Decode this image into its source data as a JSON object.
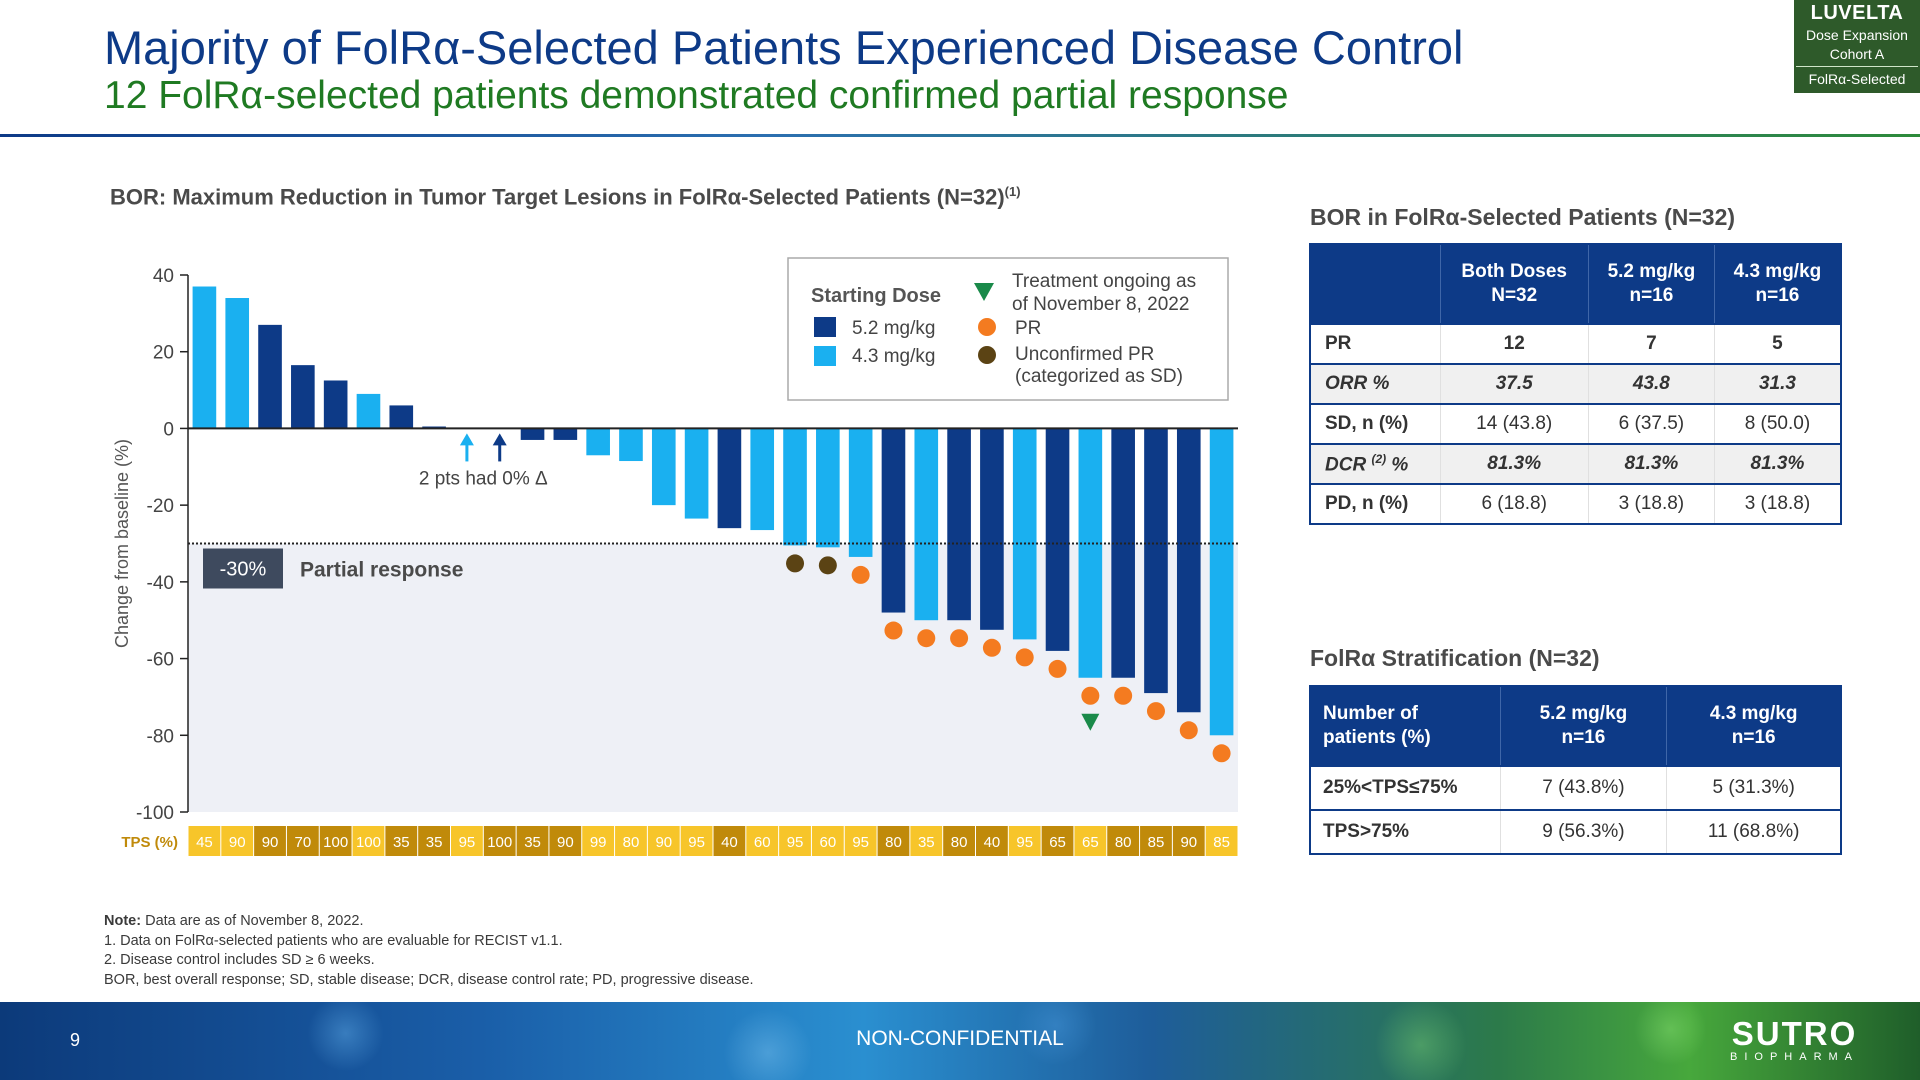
{
  "header": {
    "title": "Majority of FolRα-Selected Patients Experienced Disease Control",
    "subtitle": "12 FolRα-selected patients demonstrated confirmed partial response",
    "badge": {
      "line1": "LUVELTA",
      "line2": "Dose Expansion",
      "line3": "Cohort A",
      "line4": "FolRα-Selected"
    }
  },
  "colors": {
    "dose_5_2": "#0d3a87",
    "dose_4_3": "#1ab0f0",
    "pr": "#f47b20",
    "unconfirmed_pr": "#5b4314",
    "ongoing": "#1a8a4a",
    "tps_light": "#f7c52a",
    "tps_dark": "#c08a0a"
  },
  "chart_data": {
    "type": "bar",
    "title": "BOR: Maximum Reduction in Tumor Target Lesions in FolRα-Selected Patients (N=32)",
    "title_sup": "(1)",
    "ylabel": "Change from baseline (%)",
    "ylim": [
      -100,
      40
    ],
    "yticks": [
      40,
      20,
      0,
      -20,
      -40,
      -60,
      -80,
      -100
    ],
    "values": [
      37,
      34,
      27,
      16.5,
      12.5,
      9,
      6,
      0.5,
      0,
      0,
      -3,
      -3,
      -7,
      -8.5,
      -20,
      -23.5,
      -26,
      -26.5,
      -30.5,
      -31,
      -33.5,
      -48,
      -50,
      -50,
      -52.5,
      -55,
      -58,
      -65,
      -65,
      -69,
      -74,
      -80
    ],
    "dose": [
      "4.3",
      "4.3",
      "5.2",
      "5.2",
      "5.2",
      "4.3",
      "5.2",
      "5.2",
      "4.3",
      "5.2",
      "5.2",
      "5.2",
      "4.3",
      "4.3",
      "4.3",
      "4.3",
      "5.2",
      "4.3",
      "4.3",
      "4.3",
      "4.3",
      "5.2",
      "4.3",
      "5.2",
      "5.2",
      "4.3",
      "5.2",
      "4.3",
      "5.2",
      "5.2",
      "5.2",
      "4.3"
    ],
    "markers": [
      "",
      "",
      "",
      "",
      "",
      "",
      "",
      "",
      "",
      "",
      "",
      "",
      "",
      "",
      "",
      "",
      "",
      "",
      "unconfirmed_pr",
      "unconfirmed_pr",
      "pr",
      "pr",
      "pr",
      "pr",
      "pr",
      "pr",
      "pr",
      "pr+ongoing",
      "pr",
      "pr",
      "pr",
      "pr"
    ],
    "tps_label": "TPS (%)",
    "tps": [
      "45",
      "90",
      "90",
      "70",
      "100",
      "100",
      "35",
      "35",
      "95",
      "100",
      "35",
      "90",
      "99",
      "80",
      "90",
      "95",
      "40",
      "60",
      "95",
      "60",
      "95",
      "80",
      "35",
      "80",
      "40",
      "95",
      "65",
      "65",
      "80",
      "85",
      "90",
      "85"
    ],
    "threshold": {
      "value": -30,
      "label": "-30%",
      "text": "Partial response"
    },
    "annotation": "2 pts had 0% Δ",
    "legend": {
      "title": "Starting Dose",
      "dose_items": [
        "5.2 mg/kg",
        "4.3 mg/kg"
      ],
      "marker_items": [
        "Treatment ongoing as of November 8, 2022",
        "PR",
        "Unconfirmed PR (categorized as SD)"
      ],
      "placement": "top-right"
    }
  },
  "bor_table": {
    "title": "BOR in FolRα-Selected Patients (N=32)",
    "headers": [
      {
        "l1": "Both Doses",
        "l2": "N=32"
      },
      {
        "l1": "5.2 mg/kg",
        "l2": "n=16"
      },
      {
        "l1": "4.3 mg/kg",
        "l2": "n=16"
      }
    ],
    "rows": [
      {
        "label": "PR",
        "vals": [
          "12",
          "7",
          "5"
        ]
      },
      {
        "label": "ORR %",
        "vals": [
          "37.5",
          "43.8",
          "31.3"
        ]
      },
      {
        "label": "SD, n (%)",
        "vals": [
          "14 (43.8)",
          "6 (37.5)",
          "8 (50.0)"
        ]
      },
      {
        "label": "DCR",
        "label_sup": "(2)",
        "label_suffix": " %",
        "vals": [
          "81.3%",
          "81.3%",
          "81.3%"
        ]
      },
      {
        "label": "PD, n (%)",
        "vals": [
          "6 (18.8)",
          "3 (18.8)",
          "3 (18.8)"
        ]
      }
    ]
  },
  "strat_table": {
    "title": "FolRα Stratification (N=32)",
    "headers": [
      {
        "l1": "Number of",
        "l2": "patients (%)"
      },
      {
        "l1": "5.2 mg/kg",
        "l2": "n=16"
      },
      {
        "l1": "4.3 mg/kg",
        "l2": "n=16"
      }
    ],
    "rows": [
      {
        "label": "25%<TPS≤75%",
        "vals": [
          "7 (43.8%)",
          "5 (31.3%)"
        ]
      },
      {
        "label": "TPS>75%",
        "vals": [
          "9 (56.3%)",
          "11 (68.8%)"
        ]
      }
    ]
  },
  "notes": {
    "lead": "Note:",
    "line0": " Data are as of November 8, 2022.",
    "line1": "1. Data on FolRα-selected patients who are evaluable for RECIST v1.1.",
    "line2": "2. Disease control includes SD ≥ 6 weeks.",
    "line3": "BOR, best overall response; SD, stable disease; DCR, disease control rate; PD, progressive disease."
  },
  "footer": {
    "page": "9",
    "label": "NON-CONFIDENTIAL",
    "logo": "SUTRO",
    "logo_sub": "BIOPHARMA"
  }
}
